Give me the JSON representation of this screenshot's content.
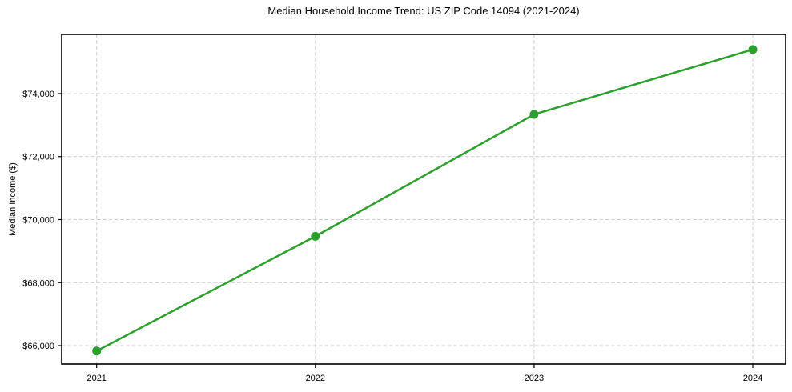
{
  "chart_data": {
    "type": "line",
    "title": "Median Household Income Trend: US ZIP Code 14094 (2021-2024)",
    "xlabel": "",
    "ylabel": "Median Income ($)",
    "x": [
      2021,
      2022,
      2023,
      2024
    ],
    "series": [
      {
        "values": [
          65830,
          69470,
          73340,
          75400
        ],
        "color": "#2ca02c",
        "marker": "circle"
      }
    ],
    "xticks": [
      2021,
      2022,
      2023,
      2024
    ],
    "xtick_labels": [
      "2021",
      "2022",
      "2023",
      "2024"
    ],
    "yticks": [
      66000,
      68000,
      70000,
      72000,
      74000
    ],
    "ytick_labels": [
      "$66,000",
      "$68,000",
      "$70,000",
      "$72,000",
      "$74,000"
    ],
    "xlim": [
      2020.84,
      2024.15
    ],
    "ylim": [
      65416,
      75879
    ],
    "grid": true,
    "grid_style": "dashed",
    "grid_color": "#cccccc",
    "line_color": "#2ca02c",
    "spine_color": "#000000",
    "background_color": "#ffffff",
    "legend": null
  }
}
